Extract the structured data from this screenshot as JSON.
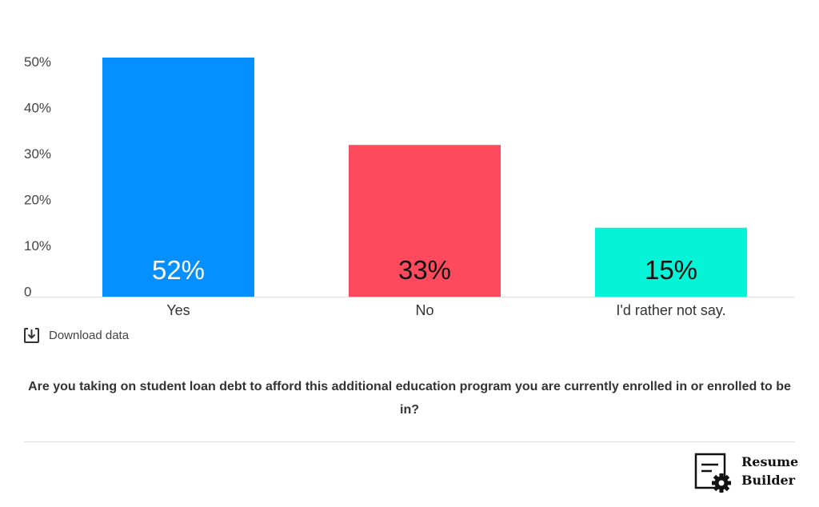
{
  "chart_data": {
    "type": "bar",
    "categories": [
      "Yes",
      "No",
      "I'd rather not say."
    ],
    "values": [
      52,
      33,
      15
    ],
    "value_labels": [
      "52%",
      "33%",
      "15%"
    ],
    "colors": [
      "#068ffe",
      "#ff4a5e",
      "#05f4d7"
    ],
    "label_colors": [
      "#ffffff",
      "#111111",
      "#111111"
    ],
    "y_ticks": [
      {
        "value": 0,
        "label": "0"
      },
      {
        "value": 10,
        "label": "10%"
      },
      {
        "value": 20,
        "label": "20%"
      },
      {
        "value": 30,
        "label": "30%"
      },
      {
        "value": 40,
        "label": "40%"
      },
      {
        "value": 50,
        "label": "50%"
      }
    ],
    "ylim": [
      0,
      52
    ],
    "grid": false,
    "title": "",
    "xlabel": "",
    "ylabel": ""
  },
  "download_label": "Download data",
  "caption": "Are you taking on student loan debt to afford this additional education program you are currently enrolled in or enrolled to be in?",
  "logo": {
    "line1": "Resume",
    "line2": "Builder"
  }
}
